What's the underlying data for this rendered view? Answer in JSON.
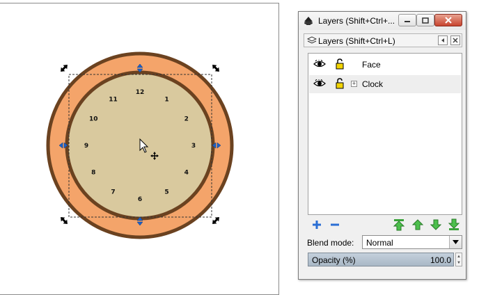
{
  "canvas": {
    "clock_numbers": [
      "12",
      "1",
      "2",
      "3",
      "4",
      "5",
      "6",
      "7",
      "8",
      "9",
      "10",
      "11"
    ],
    "colors": {
      "outer_ring": "#f4a46a",
      "outer_ring_stroke": "#6b4220",
      "face": "#d9c99e",
      "face_stroke": "#6b4220",
      "handle_arrow": "#1d61c8"
    }
  },
  "window": {
    "title": "Layers (Shift+Ctrl+...",
    "buttons": {
      "minimize_icon": "minimize-icon",
      "maximize_icon": "maximize-icon",
      "close_icon": "close-icon"
    }
  },
  "panel": {
    "title": "Layers (Shift+Ctrl+L)",
    "layers": [
      {
        "name": "Face",
        "visible": true,
        "locked": false,
        "has_children": false
      },
      {
        "name": "Clock",
        "visible": true,
        "locked": false,
        "has_children": true
      }
    ],
    "blend_mode": {
      "label": "Blend mode:",
      "value": "Normal"
    },
    "opacity": {
      "label": "Opacity (%)",
      "value": "100.0",
      "fraction": 1.0
    },
    "actions": [
      "add-layer-icon",
      "remove-layer-icon",
      "raise-to-top-icon",
      "raise-icon",
      "lower-icon",
      "lower-to-bottom-icon"
    ]
  }
}
